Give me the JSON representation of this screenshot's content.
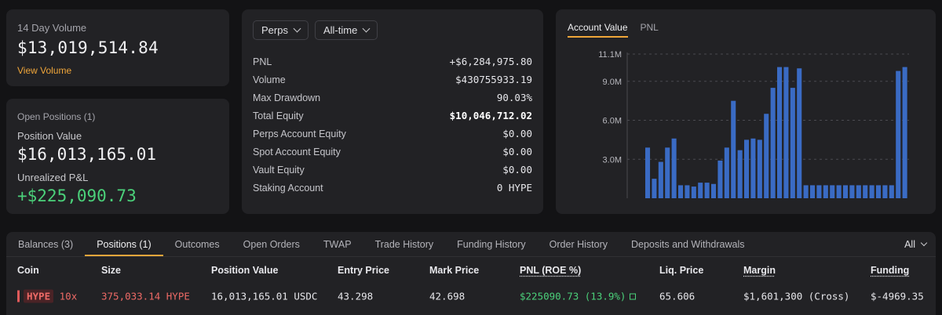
{
  "volume_card": {
    "label": "14 Day Volume",
    "value": "$13,019,514.84",
    "link": "View Volume"
  },
  "positions_card": {
    "title": "Open Positions (1)",
    "position_value_label": "Position Value",
    "position_value": "$16,013,165.01",
    "unrealized_label": "Unrealized P&L",
    "unrealized_value": "+$225,090.73"
  },
  "stats_card": {
    "dropdown_market": "Perps",
    "dropdown_range": "All-time",
    "rows": [
      {
        "label": "PNL",
        "value": "+$6,284,975.80"
      },
      {
        "label": "Volume",
        "value": "$430755933.19"
      },
      {
        "label": "Max Drawdown",
        "value": "90.03%"
      },
      {
        "label": "Total Equity",
        "value": "$10,046,712.02"
      },
      {
        "label": "Perps Account Equity",
        "value": "$0.00"
      },
      {
        "label": "Spot Account Equity",
        "value": "$0.00"
      },
      {
        "label": "Vault Equity",
        "value": "$0.00"
      },
      {
        "label": "Staking Account",
        "value": "0 HYPE"
      }
    ]
  },
  "chart_card": {
    "tabs": [
      "Account Value",
      "PNL"
    ],
    "active_tab": "Account Value",
    "colors": {
      "bar": "#3a6bc4",
      "grid": "#4a4a50",
      "axis_text": "#b8b8be"
    }
  },
  "chart_data": {
    "type": "bar",
    "title": "",
    "xlabel": "",
    "ylabel": "",
    "ylim": [
      0,
      11.1
    ],
    "yticks": [
      3.0,
      6.0,
      9.0,
      11.1
    ],
    "ytick_labels": [
      "3.0M",
      "6.0M",
      "9.0M",
      "11.1M"
    ],
    "grid": true,
    "unit": "M",
    "values": [
      3.9,
      1.5,
      2.8,
      3.9,
      4.6,
      1.0,
      1.0,
      0.9,
      1.2,
      1.2,
      1.1,
      2.9,
      3.9,
      7.5,
      3.7,
      4.5,
      4.6,
      4.5,
      6.5,
      8.5,
      10.1,
      10.1,
      8.5,
      10.0,
      1.0,
      1.0,
      1.0,
      1.0,
      1.0,
      1.0,
      1.0,
      1.0,
      1.0,
      1.0,
      1.0,
      1.0,
      1.0,
      1.0,
      9.8,
      10.1
    ]
  },
  "bottom_panel": {
    "tabs": [
      "Balances (3)",
      "Positions (1)",
      "Outcomes",
      "Open Orders",
      "TWAP",
      "Trade History",
      "Funding History",
      "Order History",
      "Deposits and Withdrawals"
    ],
    "active_tab": "Positions (1)",
    "filter": "All",
    "columns": [
      "Coin",
      "Size",
      "Position Value",
      "Entry Price",
      "Mark Price",
      "PNL (ROE %)",
      "Liq. Price",
      "Margin",
      "Funding"
    ],
    "row": {
      "coin": "HYPE",
      "leverage": "10x",
      "size": "375,033.14 HYPE",
      "position_value": "16,013,165.01 USDC",
      "entry_price": "43.298",
      "mark_price": "42.698",
      "pnl": "$225090.73 (13.9%)",
      "liq_price": "65.606",
      "margin": "$1,601,300 (Cross)",
      "funding": "$-4969.35"
    }
  }
}
